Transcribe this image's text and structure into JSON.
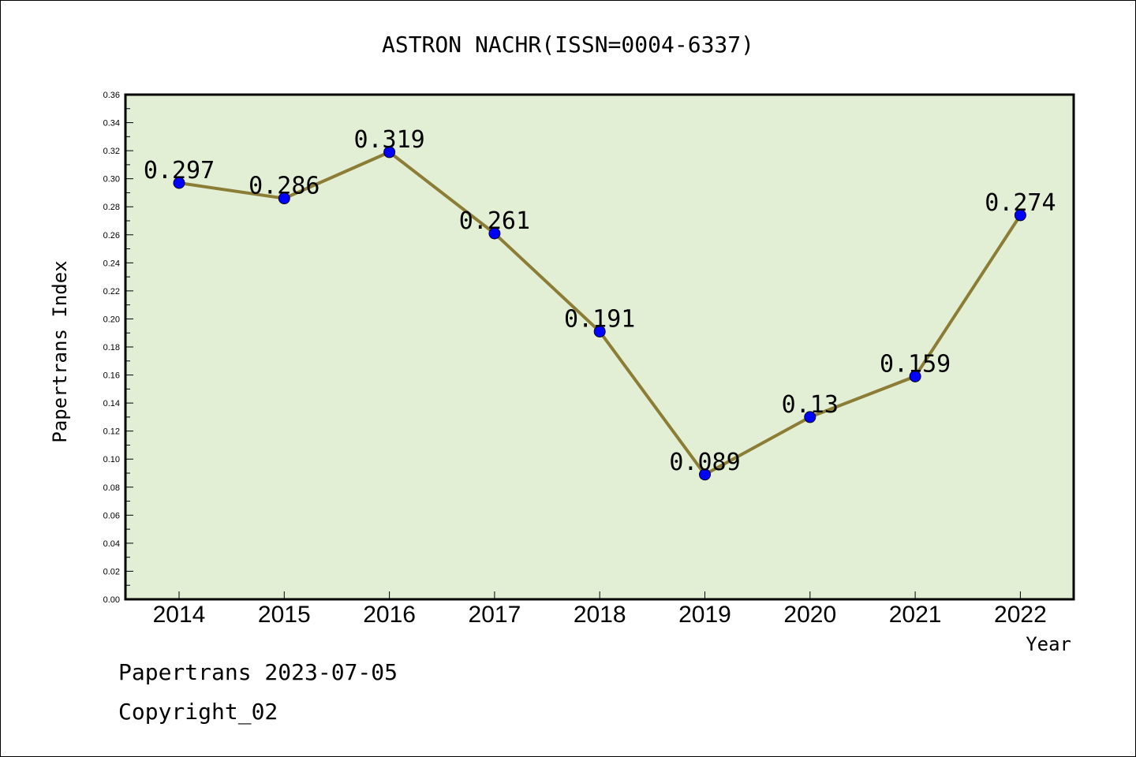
{
  "chart_data": {
    "type": "line",
    "title": "ASTRON NACHR(ISSN=0004-6337)",
    "xlabel": "Year",
    "ylabel": "Papertrans Index",
    "categories": [
      "2014",
      "2015",
      "2016",
      "2017",
      "2018",
      "2019",
      "2020",
      "2021",
      "2022"
    ],
    "series": [
      {
        "values": [
          0.297,
          0.286,
          0.319,
          0.261,
          0.191,
          0.089,
          0.13,
          0.159,
          0.274
        ],
        "data_labels": [
          "0.297",
          "0.286",
          "0.319",
          "0.261",
          "0.191",
          "0.089",
          "0.13",
          "0.159",
          "0.274"
        ]
      }
    ],
    "ylim": [
      0,
      0.36
    ],
    "yticks": [
      "0.00",
      "0.02",
      "0.04",
      "0.06",
      "0.08",
      "0.10",
      "0.12",
      "0.14",
      "0.16",
      "0.18",
      "0.20",
      "0.22",
      "0.24",
      "0.26",
      "0.28",
      "0.30",
      "0.32",
      "0.34",
      "0.36"
    ],
    "grid": false,
    "colors": {
      "plot_background": "#e2efd4",
      "line": "#8b7d35",
      "marker": "#0000ff"
    }
  },
  "footer": {
    "line1": "Papertrans 2023-07-05",
    "line2": "Copyright_02"
  }
}
